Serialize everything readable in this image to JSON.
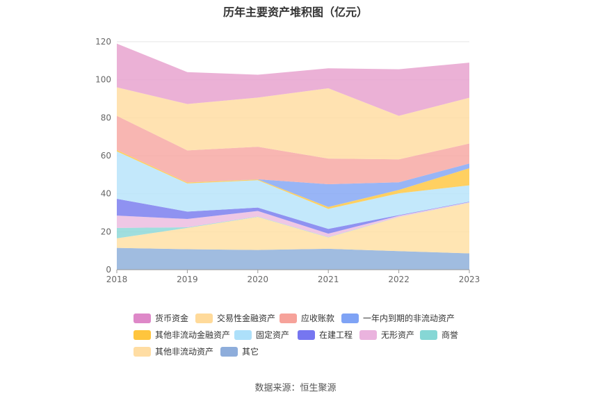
{
  "chart_data": {
    "type": "area",
    "title": "历年主要资产堆积图（亿元）",
    "x": [
      "2018",
      "2019",
      "2020",
      "2021",
      "2022",
      "2023"
    ],
    "ylim": [
      0,
      120
    ],
    "yticks": [
      0,
      20,
      40,
      60,
      80,
      100,
      120
    ],
    "grid": true,
    "legend_position": "bottom",
    "series": [
      {
        "name": "其它",
        "color": "#8FB0DB",
        "values": [
          11.5,
          10.8,
          10.4,
          11.0,
          9.8,
          8.6
        ]
      },
      {
        "name": "其他非流动资产",
        "color": "#FFE0A6",
        "values": [
          5.0,
          11.2,
          17.4,
          6.0,
          17.9,
          26.6
        ]
      },
      {
        "name": "商誉",
        "color": "#8ED8D8",
        "values": [
          5.5,
          0.3,
          0.2,
          0.2,
          0.1,
          0.1
        ]
      },
      {
        "name": "无形资产",
        "color": "#ECBDE0",
        "values": [
          6.5,
          4.4,
          2.9,
          1.8,
          0.6,
          0.3
        ]
      },
      {
        "name": "在建工程",
        "color": "#7B7FEF",
        "values": [
          8.8,
          3.9,
          1.8,
          2.5,
          0.3,
          0.2
        ]
      },
      {
        "name": "固定资产",
        "color": "#B8E4FA",
        "values": [
          25.0,
          14.8,
          14.4,
          10.5,
          11.5,
          8.6
        ]
      },
      {
        "name": "其他非流动金融资产",
        "color": "#FFC845",
        "values": [
          0.7,
          0.5,
          0.4,
          1.0,
          1.8,
          9.0
        ]
      },
      {
        "name": "一年内到期的非流动资产",
        "color": "#86A8F5",
        "values": [
          0.0,
          0.0,
          0.1,
          12.0,
          4.0,
          2.5
        ]
      },
      {
        "name": "应收账款",
        "color": "#F7A9A4",
        "values": [
          18.0,
          16.9,
          17.1,
          13.5,
          12.1,
          10.5
        ]
      },
      {
        "name": "交易性金融资产",
        "color": "#FFDDA3",
        "values": [
          15.0,
          24.4,
          25.9,
          37.0,
          22.9,
          24.1
        ]
      },
      {
        "name": "货币资金",
        "color": "#E7A3CF",
        "values": [
          23.0,
          16.8,
          12.0,
          10.5,
          24.5,
          18.5
        ]
      }
    ]
  },
  "legend": [
    {
      "label": "货币资金",
      "color": "#DE88C8"
    },
    {
      "label": "交易性金融资产",
      "color": "#FFDA9A"
    },
    {
      "label": "应收账款",
      "color": "#F6A29A"
    },
    {
      "label": "一年内到期的非流动资产",
      "color": "#7FA3F5"
    },
    {
      "label": "其他非流动金融资产",
      "color": "#FFC53D"
    },
    {
      "label": "固定资产",
      "color": "#ADE0FA"
    },
    {
      "label": "在建工程",
      "color": "#7676F0"
    },
    {
      "label": "无形资产",
      "color": "#EAB3DE"
    },
    {
      "label": "商誉",
      "color": "#86D7D5"
    },
    {
      "label": "其他非流动资产",
      "color": "#FFDDA3"
    },
    {
      "label": "其它",
      "color": "#8EADDB"
    }
  ],
  "source": "数据来源：恒生聚源"
}
